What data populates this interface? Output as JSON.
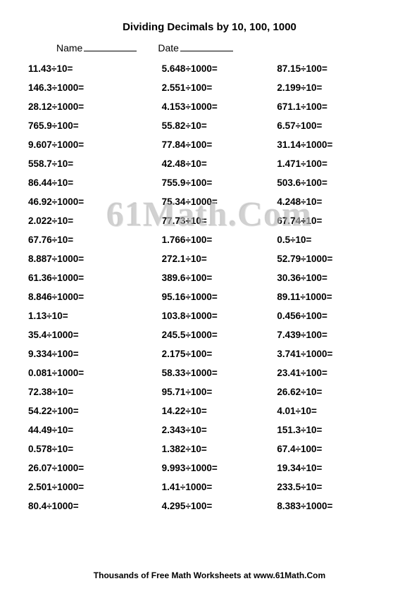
{
  "title": "Dividing Decimals by 10, 100, 1000",
  "header": {
    "name_label": "Name",
    "date_label": "Date"
  },
  "watermark": "61Math.Com",
  "footer": "Thousands of Free Math Worksheets at www.61Math.Com",
  "problems": [
    [
      "11.43÷10=",
      "5.648÷1000=",
      "87.15÷100="
    ],
    [
      "146.3÷1000=",
      "2.551÷100=",
      "2.199÷10="
    ],
    [
      "28.12÷1000=",
      "4.153÷1000=",
      "671.1÷100="
    ],
    [
      "765.9÷100=",
      "55.82÷10=",
      "6.57÷100="
    ],
    [
      "9.607÷1000=",
      "77.84÷100=",
      "31.14÷1000="
    ],
    [
      "558.7÷10=",
      "42.48÷10=",
      "1.471÷100="
    ],
    [
      "86.44÷10=",
      "755.9÷100=",
      "503.6÷100="
    ],
    [
      "46.92÷1000=",
      "75.34÷1000=",
      "4.248÷10="
    ],
    [
      "2.022÷10=",
      "77.73÷10=",
      "67.74÷10="
    ],
    [
      "67.76÷10=",
      "1.766÷100=",
      "0.5÷10="
    ],
    [
      "8.887÷1000=",
      "272.1÷10=",
      "52.79÷1000="
    ],
    [
      "61.36÷1000=",
      "389.6÷100=",
      "30.36÷100="
    ],
    [
      "8.846÷1000=",
      "95.16÷1000=",
      "89.11÷1000="
    ],
    [
      "1.13÷10=",
      "103.8÷1000=",
      "0.456÷100="
    ],
    [
      "35.4÷1000=",
      "245.5÷1000=",
      "7.439÷100="
    ],
    [
      "9.334÷100=",
      "2.175÷100=",
      "3.741÷1000="
    ],
    [
      "0.081÷1000=",
      "58.33÷1000=",
      "23.41÷100="
    ],
    [
      "72.38÷10=",
      "95.71÷100=",
      "26.62÷10="
    ],
    [
      "54.22÷100=",
      "14.22÷10=",
      "4.01÷10="
    ],
    [
      "44.49÷10=",
      "2.343÷10=",
      "151.3÷10="
    ],
    [
      "0.578÷10=",
      "1.382÷10=",
      "67.4÷100="
    ],
    [
      "26.07÷1000=",
      "9.993÷1000=",
      "19.34÷10="
    ],
    [
      "2.501÷1000=",
      "1.41÷1000=",
      "233.5÷10="
    ],
    [
      "80.4÷1000=",
      "4.295÷100=",
      "8.383÷1000="
    ]
  ]
}
